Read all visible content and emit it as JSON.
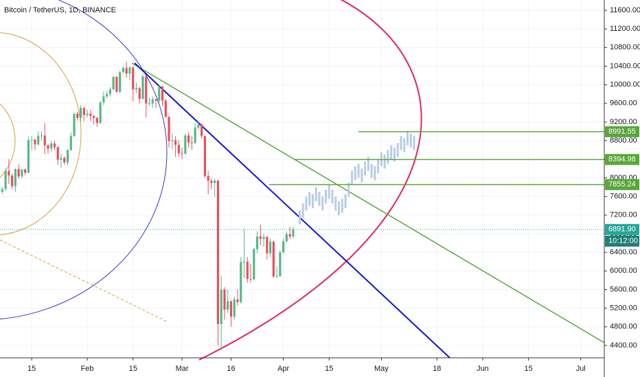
{
  "chart_data": {
    "type": "candlestick",
    "title": "Bitcoin / TetherUS, 1D, BINANCE",
    "xlim": [
      5.3,
      190.2
    ],
    "xticks": [
      15,
      {
        "value": 32,
        "label": "Feb"
      },
      {
        "value": 46,
        "label": "15"
      },
      {
        "value": 61,
        "label": "Mar"
      },
      {
        "value": 76,
        "label": "16"
      },
      {
        "value": 92,
        "label": "Apr"
      },
      {
        "value": 106,
        "label": "15"
      },
      {
        "value": 122,
        "label": "May"
      },
      {
        "value": 139,
        "label": "18"
      },
      {
        "value": 153,
        "label": "Jun"
      },
      {
        "value": 167,
        "label": "15"
      },
      {
        "value": 183,
        "label": "Jul"
      }
    ],
    "ylim": [
      4135,
      11821
    ],
    "yticks": [
      {
        "value": 11600,
        "label": "11600.00"
      },
      {
        "value": 11200,
        "label": "11200.00"
      },
      {
        "value": 10800,
        "label": "10800.00"
      },
      {
        "value": 10400,
        "label": "10400.00"
      },
      {
        "value": 10000,
        "label": "10000.00"
      },
      {
        "value": 9600,
        "label": "9600.00"
      },
      {
        "value": 9200,
        "label": "9200.00"
      },
      {
        "value": 8800,
        "label": "8800.00"
      },
      {
        "value": 8400,
        "label": "8400.00"
      },
      {
        "value": 8000,
        "label": "8000.00"
      },
      {
        "value": 7600,
        "label": "7600.00"
      },
      {
        "value": 7200,
        "label": "7200.00"
      },
      {
        "value": 6800,
        "label": "6800.00"
      },
      {
        "value": 6400,
        "label": "6400.00"
      },
      {
        "value": 6000,
        "label": "6000.00"
      },
      {
        "value": 5600,
        "label": "5600.00"
      },
      {
        "value": 5200,
        "label": "5200.00"
      },
      {
        "value": 4800,
        "label": "4800.00"
      },
      {
        "value": 4400,
        "label": "4400.00"
      }
    ],
    "grid": true,
    "up_color": "#53b987",
    "down_color": "#eb4d5c",
    "projection_color": "#b7cde6",
    "level_color": "#5aa63a",
    "last_color": "#26a69a",
    "candles": {
      "x": [
        6,
        7,
        8,
        9,
        10,
        11,
        12,
        13,
        14,
        15,
        16,
        17,
        18,
        19,
        20,
        21,
        22,
        23,
        24,
        25,
        26,
        27,
        28,
        29,
        30,
        31,
        32,
        33,
        34,
        35,
        36,
        37,
        38,
        39,
        40,
        41,
        42,
        43,
        44,
        45,
        46,
        47,
        48,
        49,
        50,
        51,
        52,
        53,
        54,
        55,
        56,
        57,
        58,
        59,
        60,
        61,
        62,
        63,
        64,
        65,
        66,
        67,
        68,
        69,
        70,
        71,
        72,
        73,
        74,
        75,
        76,
        77,
        78,
        79,
        80,
        81,
        82,
        83,
        84,
        85,
        86,
        87,
        88,
        89,
        90,
        91,
        92,
        93,
        94,
        95
      ],
      "open": [
        7700,
        7760,
        8150,
        8050,
        7820,
        8190,
        8030,
        8180,
        8110,
        8810,
        8820,
        8720,
        8900,
        8910,
        8700,
        8630,
        8740,
        8660,
        8390,
        8430,
        8330,
        8600,
        8900,
        9380,
        9290,
        9500,
        9350,
        9380,
        9330,
        9290,
        9180,
        9620,
        9750,
        9800,
        9900,
        10170,
        9850,
        10270,
        10360,
        10240,
        10370,
        9900,
        9930,
        9700,
        10180,
        9600,
        9600,
        9690,
        9660,
        9960,
        9660,
        9310,
        8790,
        8810,
        8710,
        8530,
        8520,
        8910,
        8760,
        8750,
        9080,
        9150,
        8900,
        8040,
        7940,
        7890,
        7940,
        4860,
        5600,
        5170,
        5350,
        5020,
        5390,
        5330,
        6190,
        6200,
        5830,
        5820,
        6470,
        6740,
        6690,
        6730,
        6380,
        6630,
        5880,
        5890,
        6400,
        6640,
        6790,
        6740
      ],
      "high": [
        7810,
        8210,
        8400,
        8100,
        8200,
        8290,
        8190,
        8200,
        8880,
        8900,
        8850,
        9000,
        9000,
        9180,
        8730,
        8800,
        8800,
        8680,
        8520,
        8460,
        8620,
        8980,
        9400,
        9420,
        9560,
        9530,
        9470,
        9460,
        9350,
        9300,
        9650,
        9860,
        9870,
        9950,
        10180,
        10190,
        10300,
        10400,
        10500,
        10400,
        10400,
        10050,
        9950,
        10230,
        10200,
        9720,
        9750,
        9700,
        10000,
        9980,
        9700,
        9330,
        8960,
        8900,
        8800,
        8650,
        8950,
        8980,
        8900,
        9170,
        9200,
        9170,
        8900,
        8150,
        7990,
        7980,
        7960,
        5900,
        5650,
        5600,
        5360,
        5450,
        5600,
        6300,
        6900,
        6300,
        6150,
        6500,
        6850,
        6990,
        6800,
        6750,
        6700,
        6650,
        6100,
        6450,
        6700,
        6850,
        6950,
        6950
      ],
      "low": [
        7650,
        7720,
        7870,
        7760,
        7700,
        7980,
        8000,
        8060,
        8100,
        8600,
        8600,
        8700,
        8800,
        8500,
        8520,
        8560,
        8600,
        8280,
        8220,
        8280,
        8270,
        8580,
        8880,
        9230,
        9210,
        9220,
        9300,
        9220,
        9150,
        9100,
        9160,
        9560,
        9710,
        9750,
        9880,
        9830,
        9820,
        10250,
        10150,
        10100,
        9650,
        9820,
        9600,
        9680,
        9300,
        9550,
        9500,
        9500,
        9620,
        9550,
        9300,
        8650,
        8620,
        8450,
        8450,
        8400,
        8500,
        8650,
        8600,
        8730,
        9030,
        8850,
        8000,
        7650,
        7750,
        7600,
        4400,
        4300,
        4950,
        5100,
        4800,
        4950,
        5250,
        5300,
        5850,
        5750,
        5750,
        5800,
        6380,
        6550,
        6520,
        6250,
        6300,
        5850,
        5850,
        5880,
        6380,
        6600,
        6680,
        6700
      ],
      "close": [
        7760,
        8150,
        8050,
        7820,
        8190,
        8030,
        8180,
        8110,
        8810,
        8820,
        8720,
        8900,
        8910,
        8700,
        8630,
        8740,
        8660,
        8390,
        8430,
        8330,
        8600,
        8900,
        9380,
        9290,
        9500,
        9350,
        9380,
        9330,
        9290,
        9180,
        9620,
        9750,
        9800,
        9900,
        10170,
        9850,
        10270,
        10360,
        10240,
        10370,
        9900,
        9930,
        9700,
        10180,
        9600,
        9600,
        9690,
        9660,
        9960,
        9660,
        9310,
        8790,
        8810,
        8710,
        8530,
        8520,
        8910,
        8760,
        8750,
        9080,
        9150,
        8900,
        8040,
        7940,
        7890,
        7940,
        4860,
        5600,
        5170,
        5350,
        5020,
        5390,
        5330,
        6190,
        6200,
        5830,
        5820,
        6470,
        6740,
        6690,
        6730,
        6380,
        6630,
        5880,
        5890,
        6400,
        6640,
        6790,
        6740,
        6891.9
      ]
    },
    "projection": {
      "x": [
        97,
        98,
        99,
        100,
        101,
        102,
        103,
        104,
        105,
        106,
        107,
        108,
        109,
        110,
        111,
        112,
        113,
        114,
        115,
        116,
        117,
        118,
        119,
        120,
        121,
        122,
        123,
        124,
        125,
        126,
        127,
        128,
        129,
        130,
        131,
        132
      ],
      "low": [
        7000,
        7150,
        7300,
        7400,
        7350,
        7500,
        7400,
        7300,
        7450,
        7550,
        7450,
        7300,
        7200,
        7250,
        7350,
        7600,
        7850,
        7950,
        8000,
        7900,
        8050,
        8150,
        8000,
        7950,
        8100,
        8250,
        8200,
        8300,
        8400,
        8350,
        8450,
        8600,
        8550,
        8700,
        8650,
        8600
      ],
      "high": [
        7300,
        7450,
        7600,
        7700,
        7650,
        7800,
        7700,
        7600,
        7750,
        7850,
        7750,
        7600,
        7500,
        7550,
        7650,
        7900,
        8150,
        8250,
        8300,
        8200,
        8350,
        8450,
        8300,
        8250,
        8400,
        8550,
        8500,
        8600,
        8700,
        8650,
        8750,
        8900,
        8850,
        9000,
        8950,
        8900
      ]
    },
    "price_lines": [
      8991.55,
      8394.98,
      7855.24
    ],
    "last_price": {
      "value": 6891.9,
      "label": "6891.90"
    },
    "countdown": "10:12:00"
  }
}
